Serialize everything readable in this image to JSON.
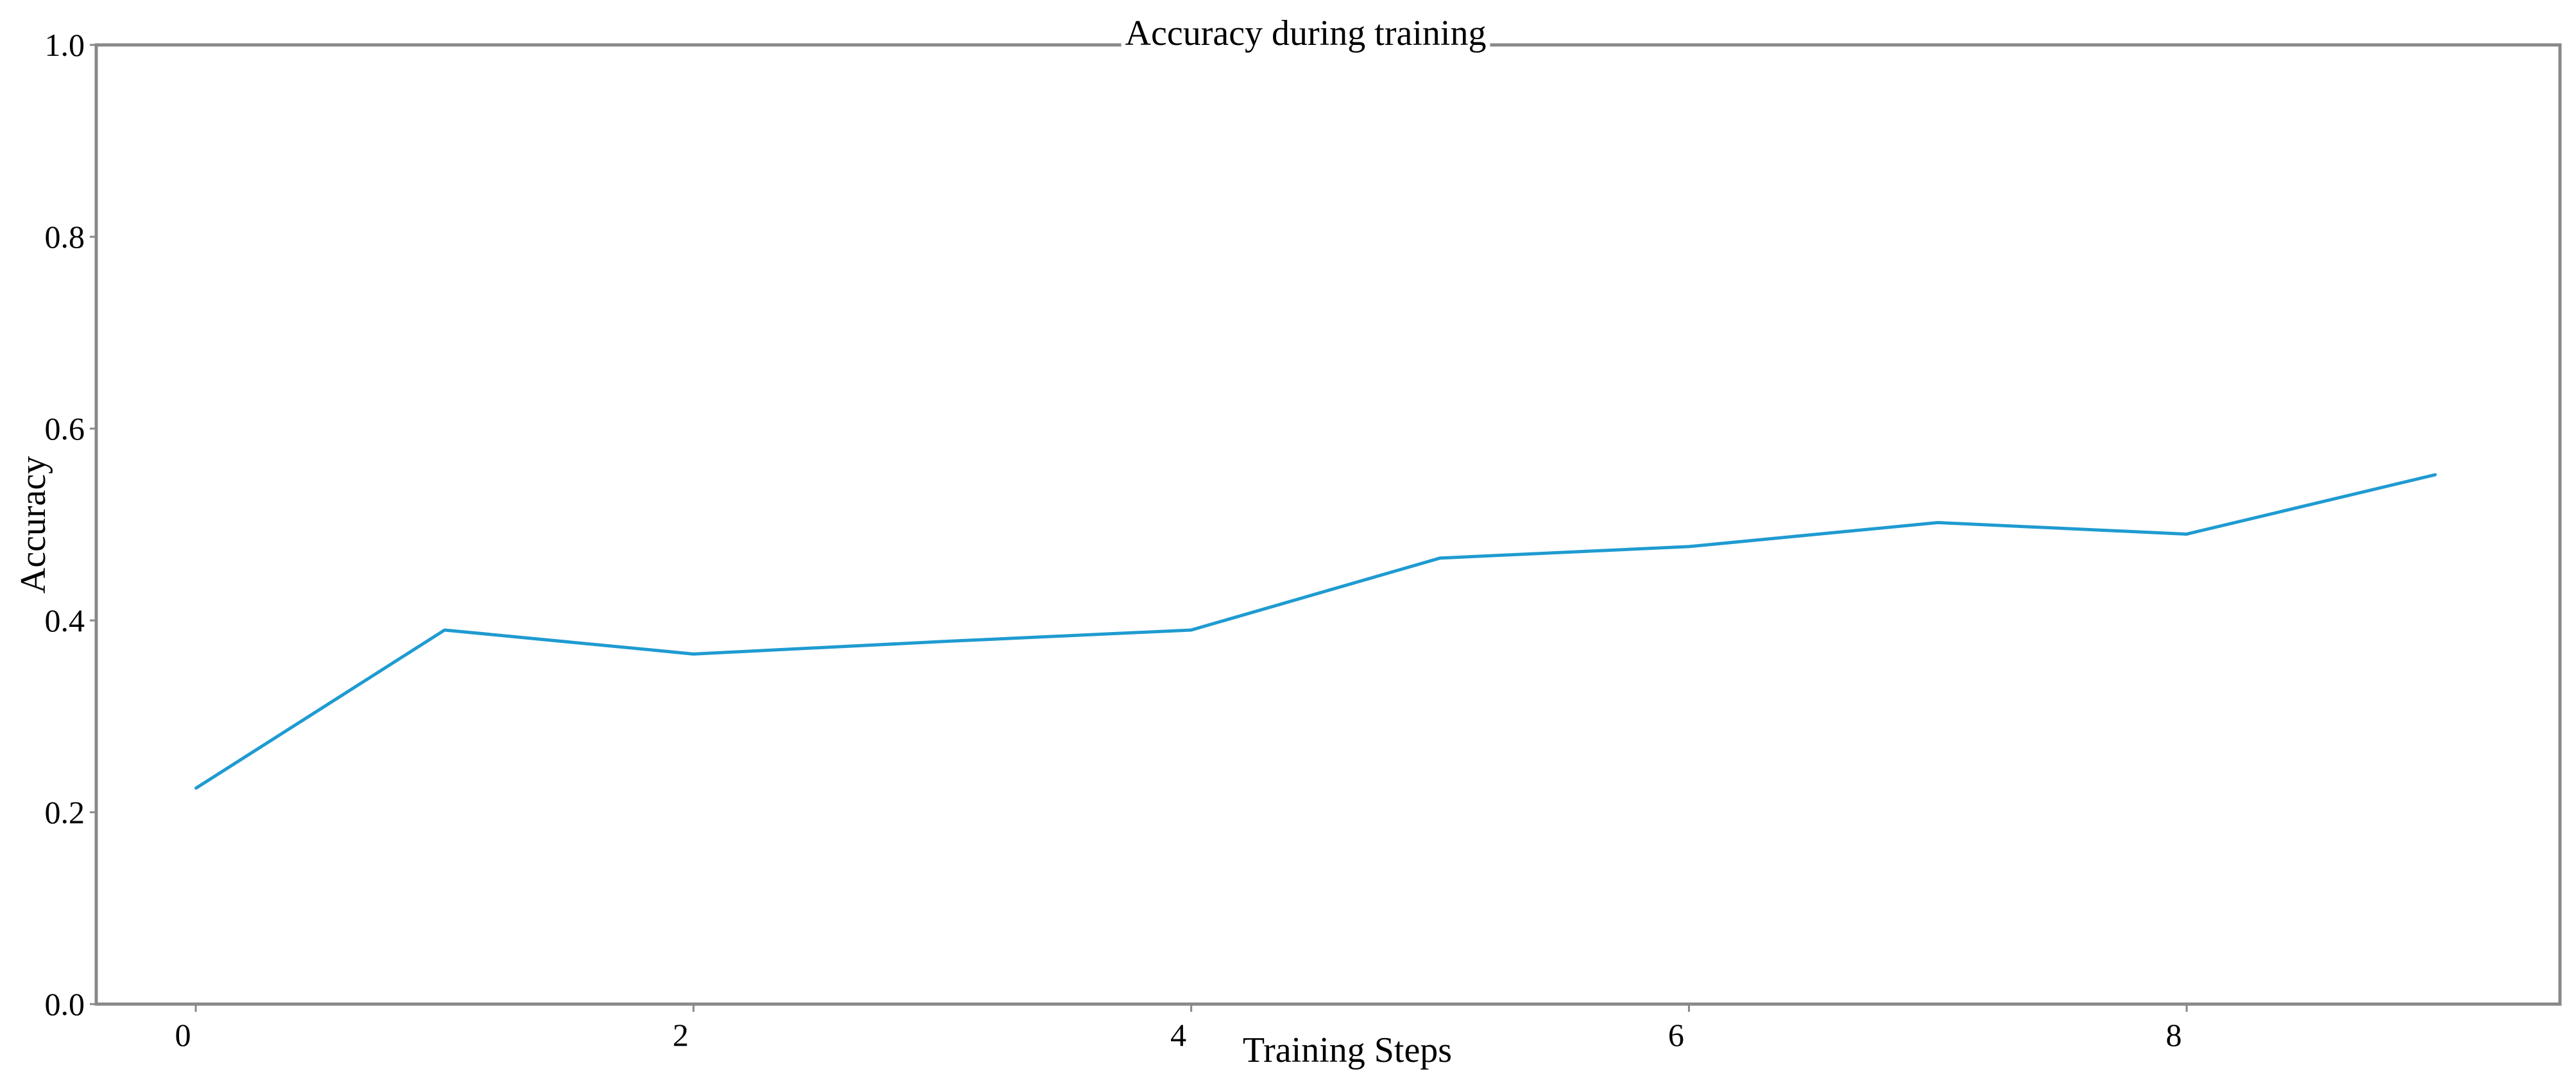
{
  "chart_data": {
    "type": "line",
    "title": "Accuracy during training",
    "xlabel": "Training Steps",
    "ylabel": "Accuracy",
    "xlim": [
      -0.4,
      9.5
    ],
    "ylim": [
      0.0,
      1.0
    ],
    "x_ticks": [
      0,
      2,
      4,
      6,
      8
    ],
    "x_tick_labels": [
      "0",
      "2",
      "4",
      "6",
      "8"
    ],
    "y_ticks": [
      0.0,
      0.2,
      0.4,
      0.6,
      0.8,
      1.0
    ],
    "y_tick_labels": [
      "0.0",
      "0.2",
      "0.4",
      "0.6",
      "0.8",
      "1.0"
    ],
    "grid": false,
    "legend": "none",
    "series": [
      {
        "color": "#1f9bd1",
        "x": [
          0,
          1,
          2,
          3,
          4,
          5,
          6,
          7,
          8,
          9
        ],
        "y": [
          0.225,
          0.39,
          0.365,
          0.378,
          0.39,
          0.465,
          0.477,
          0.502,
          0.49,
          0.552
        ]
      }
    ]
  }
}
